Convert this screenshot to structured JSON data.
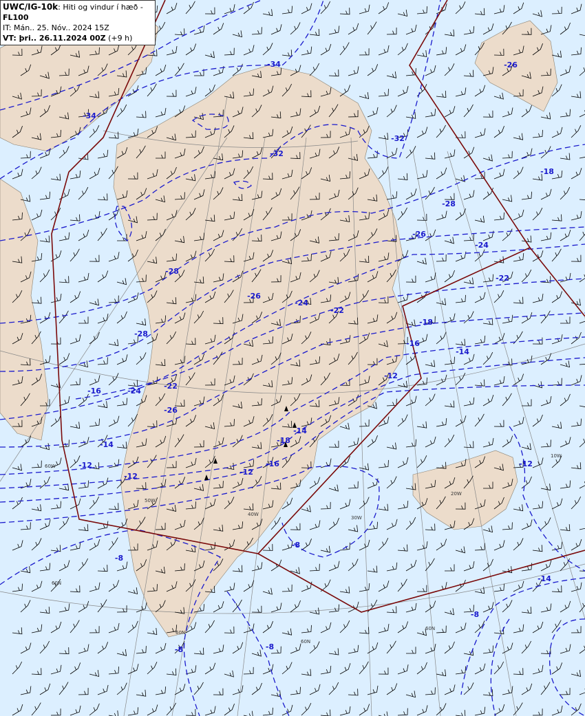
{
  "header": {
    "product": "UWC/IG-10k",
    "title_sep": ": ",
    "title": "Hiti og vindur í hæð - ",
    "level": "FL100",
    "it_prefix": "IT: ",
    "issue_time": "Mán.. 25. Nóv.. 2024 15Z",
    "vt_prefix": "VT: þri.. 26.11.2024 00Z",
    "vt_offset": " (+9 h)"
  },
  "colors": {
    "sea": "#dcefff",
    "land": "#ecdccb",
    "contour": "#1a1acc",
    "fir_boundary": "#7a0a0a",
    "graticule": "#888888",
    "wind_barb": "#000000"
  },
  "contour_labels": [
    "-34",
    "-34",
    "-32",
    "-32",
    "-28",
    "-26",
    "-28",
    "-26",
    "-24",
    "-22",
    "-28",
    "-26",
    "-24",
    "-22",
    "-18",
    "-16",
    "-14",
    "-12",
    "-22",
    "-24",
    "-26",
    "-18",
    "-16",
    "-14",
    "-12",
    "-12",
    "-16",
    "-14",
    "-18",
    "-12",
    "-8",
    "-8",
    "-8",
    "-12",
    "-14",
    "-8",
    "-8"
  ],
  "graticule_labels": [
    "60N",
    "60N",
    "60N",
    "60N",
    "60W",
    "50W",
    "40W",
    "30W",
    "20W",
    "10W"
  ]
}
